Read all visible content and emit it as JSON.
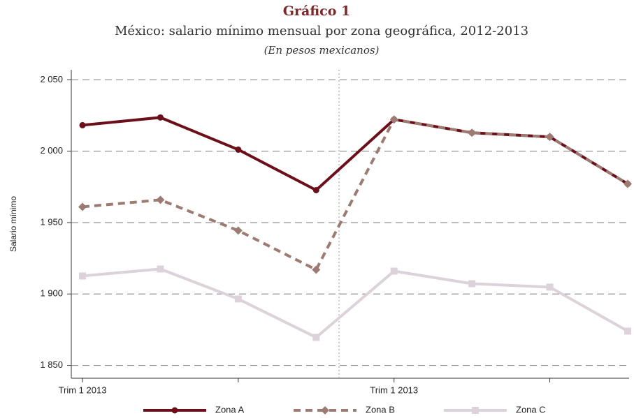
{
  "chart_data": {
    "type": "line",
    "title": "Gráfico 1",
    "subtitle": "México: salario mínimo mensual por zona geográfica, 2012-2013",
    "note": "(En pesos mexicanos)",
    "y_label": "Salario mínimo",
    "categories": [
      "Trim 1 2013",
      null,
      null,
      null,
      "Trim 1 2013",
      null,
      null,
      null
    ],
    "series": [
      {
        "name": "Zona A",
        "color": "#6b0f1a",
        "dash": "solid",
        "marker": "circle",
        "values": [
          2018.2,
          2023.6,
          2001.1,
          1972.7,
          2022.2,
          2012.9,
          2010.0,
          1977.1
        ]
      },
      {
        "name": "Zona B",
        "color": "#9b7b72",
        "dash": "dashed",
        "marker": "diamond",
        "values": [
          1961.0,
          1965.9,
          1944.4,
          1917.0,
          2022.2,
          2012.9,
          2010.0,
          1977.1
        ]
      },
      {
        "name": "Zona C",
        "color": "#dcd3da",
        "dash": "solid",
        "marker": "square",
        "values": [
          1912.6,
          1917.5,
          1896.5,
          1869.6,
          1916.0,
          1907.2,
          1904.8,
          1874.0
        ]
      }
    ],
    "ylim": [
      1841,
      2057
    ],
    "yticks": [
      {
        "value": 1850,
        "label": "1 850"
      },
      {
        "value": 1900,
        "label": "1 900"
      },
      {
        "value": 1950,
        "label": "1 950"
      },
      {
        "value": 2000,
        "label": "2 000"
      },
      {
        "value": 2050,
        "label": "2 050"
      }
    ],
    "grid": true
  }
}
